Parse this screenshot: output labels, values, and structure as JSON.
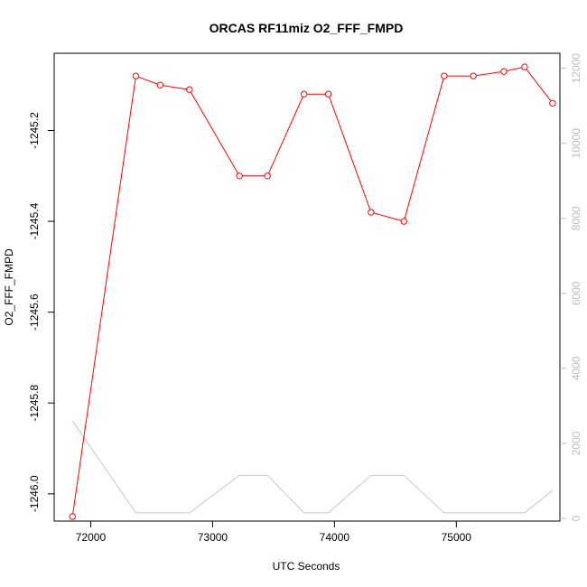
{
  "chart_data": {
    "type": "line",
    "title": "ORCAS RF11miz O2_FFF_FMPD",
    "xlabel": "UTC Seconds",
    "ylabel": "O2_FFF_FMPD",
    "xlim": [
      71700,
      75850
    ],
    "ylim": [
      -1246.06,
      -1245.03
    ],
    "y2lim": [
      -70,
      12400
    ],
    "x_ticks": [
      72000,
      73000,
      74000,
      75000
    ],
    "x_tick_labels": [
      "72000",
      "73000",
      "74000",
      "75000"
    ],
    "y_ticks": [
      -1246.0,
      -1245.8,
      -1245.6,
      -1245.4,
      -1245.2
    ],
    "y_tick_labels": [
      "-1246.0",
      "-1245.8",
      "-1245.6",
      "-1245.4",
      "-1245.2"
    ],
    "y2_ticks": [
      0,
      2000,
      4000,
      6000,
      8000,
      10000,
      12000
    ],
    "y2_tick_labels": [
      "0",
      "2000",
      "4000",
      "6000",
      "8000",
      "10000",
      "12000"
    ],
    "grid": false,
    "colors": {
      "primary": "#ff0000",
      "secondary": "#c8c8c8",
      "axis": "#000000",
      "right_axis": "#bdbdbd"
    },
    "series": [
      {
        "axis": "left",
        "marker": "open-circle",
        "points": [
          [
            71850,
            -1246.05
          ],
          [
            72370,
            -1245.08
          ],
          [
            72570,
            -1245.1
          ],
          [
            72810,
            -1245.11
          ],
          [
            73220,
            -1245.3
          ],
          [
            73450,
            -1245.3
          ],
          [
            73750,
            -1245.12
          ],
          [
            73950,
            -1245.12
          ],
          [
            74300,
            -1245.38
          ],
          [
            74570,
            -1245.4
          ],
          [
            74900,
            -1245.08
          ],
          [
            75140,
            -1245.08
          ],
          [
            75390,
            -1245.07
          ],
          [
            75560,
            -1245.06
          ],
          [
            75790,
            -1245.14
          ]
        ]
      },
      {
        "axis": "right",
        "marker": "none",
        "points": [
          [
            71850,
            2600
          ],
          [
            72370,
            150
          ],
          [
            72570,
            150
          ],
          [
            72810,
            150
          ],
          [
            73220,
            1150
          ],
          [
            73450,
            1150
          ],
          [
            73750,
            150
          ],
          [
            73950,
            150
          ],
          [
            74300,
            1150
          ],
          [
            74570,
            1150
          ],
          [
            74900,
            150
          ],
          [
            75140,
            150
          ],
          [
            75390,
            150
          ],
          [
            75560,
            150
          ],
          [
            75790,
            750
          ]
        ]
      }
    ]
  }
}
